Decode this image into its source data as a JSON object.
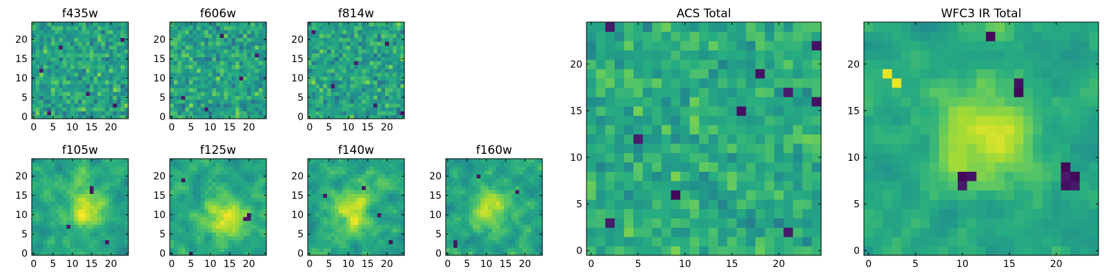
{
  "figure": {
    "colormap": "viridis",
    "colors": {
      "low": "#440154",
      "mid": "#21918c",
      "high": "#fde725",
      "frame": "#000000",
      "background": "#ffffff"
    }
  },
  "chart_data": [
    {
      "type": "heatmap",
      "title": "f435w",
      "grid_size": 25,
      "value_range": [
        0,
        1
      ],
      "mean": 0.58,
      "sigma": 0.17,
      "smooth": 0,
      "xticks": [
        0,
        5,
        10,
        15,
        20
      ],
      "yticks": [
        0,
        5,
        10,
        15,
        20
      ],
      "xlim": [
        -0.5,
        24.5
      ],
      "ylim": [
        -0.5,
        24.5
      ],
      "dark_cells": [
        [
          2,
          12
        ],
        [
          4,
          1
        ],
        [
          7,
          18
        ],
        [
          14,
          6
        ],
        [
          21,
          3
        ],
        [
          23,
          20
        ]
      ]
    },
    {
      "type": "heatmap",
      "title": "f606w",
      "grid_size": 25,
      "value_range": [
        0,
        1
      ],
      "mean": 0.58,
      "sigma": 0.17,
      "smooth": 0,
      "xticks": [
        0,
        5,
        10,
        15,
        20
      ],
      "yticks": [
        0,
        5,
        10,
        15,
        20
      ],
      "xlim": [
        -0.5,
        24.5
      ],
      "ylim": [
        -0.5,
        24.5
      ],
      "dark_cells": [
        [
          3,
          5
        ],
        [
          9,
          2
        ],
        [
          13,
          21
        ],
        [
          18,
          10
        ],
        [
          22,
          16
        ]
      ]
    },
    {
      "type": "heatmap",
      "title": "f814w",
      "grid_size": 25,
      "value_range": [
        0,
        1
      ],
      "mean": 0.58,
      "sigma": 0.17,
      "smooth": 0,
      "xticks": [
        0,
        5,
        10,
        15,
        20
      ],
      "yticks": [
        0,
        5,
        10,
        15,
        20
      ],
      "xlim": [
        -0.5,
        24.5
      ],
      "ylim": [
        -0.5,
        24.5
      ],
      "dark_cells": [
        [
          1,
          22
        ],
        [
          6,
          8
        ],
        [
          12,
          14
        ],
        [
          17,
          3
        ],
        [
          20,
          19
        ],
        [
          24,
          1
        ]
      ]
    },
    {
      "type": "heatmap",
      "title": "f105w",
      "grid_size": 25,
      "value_range": [
        0,
        1
      ],
      "mean": 0.6,
      "sigma": 0.15,
      "smooth": 1,
      "xticks": [
        0,
        5,
        10,
        15,
        20
      ],
      "yticks": [
        0,
        5,
        10,
        15,
        20
      ],
      "xlim": [
        -0.5,
        24.5
      ],
      "ylim": [
        -0.5,
        24.5
      ],
      "bright_center": [
        13,
        12
      ],
      "bright_radius": 3.5,
      "dark_cells": [
        [
          15,
          16
        ],
        [
          15,
          17
        ],
        [
          9,
          7
        ],
        [
          19,
          3
        ]
      ]
    },
    {
      "type": "heatmap",
      "title": "f125w",
      "grid_size": 25,
      "value_range": [
        0,
        1
      ],
      "mean": 0.6,
      "sigma": 0.15,
      "smooth": 1,
      "xticks": [
        0,
        5,
        10,
        15,
        20
      ],
      "yticks": [
        0,
        5,
        10,
        15,
        20
      ],
      "xlim": [
        -0.5,
        24.5
      ],
      "ylim": [
        -0.5,
        24.5
      ],
      "bright_center": [
        14,
        9
      ],
      "bright_radius": 4,
      "dark_cells": [
        [
          19,
          9
        ],
        [
          20,
          9
        ],
        [
          20,
          10
        ],
        [
          5,
          0
        ],
        [
          3,
          19
        ]
      ]
    },
    {
      "type": "heatmap",
      "title": "f140w",
      "grid_size": 25,
      "value_range": [
        0,
        1
      ],
      "mean": 0.6,
      "sigma": 0.16,
      "smooth": 1,
      "xticks": [
        0,
        5,
        10,
        15,
        20
      ],
      "yticks": [
        0,
        5,
        10,
        15,
        20
      ],
      "xlim": [
        -0.5,
        24.5
      ],
      "ylim": [
        -0.5,
        24.5
      ],
      "bright_center": [
        11,
        11
      ],
      "bright_radius": 3.5,
      "dark_cells": [
        [
          14,
          17
        ],
        [
          18,
          10
        ],
        [
          4,
          15
        ],
        [
          21,
          3
        ]
      ]
    },
    {
      "type": "heatmap",
      "title": "f160w",
      "grid_size": 25,
      "value_range": [
        0,
        1
      ],
      "mean": 0.6,
      "sigma": 0.16,
      "smooth": 1,
      "xticks": [
        0,
        5,
        10,
        15,
        20
      ],
      "yticks": [
        0,
        5,
        10,
        15,
        20
      ],
      "xlim": [
        -0.5,
        24.5
      ],
      "ylim": [
        -0.5,
        24.5
      ],
      "bright_center": [
        11,
        12
      ],
      "bright_radius": 3,
      "dark_cells": [
        [
          2,
          2
        ],
        [
          2,
          3
        ],
        [
          18,
          16
        ],
        [
          8,
          20
        ]
      ]
    },
    {
      "type": "heatmap",
      "title": "ACS Total",
      "grid_size": 25,
      "value_range": [
        0,
        1
      ],
      "mean": 0.62,
      "sigma": 0.13,
      "smooth": 0,
      "xticks": [
        0,
        5,
        10,
        15,
        20
      ],
      "yticks": [
        0,
        5,
        10,
        15,
        20
      ],
      "xlim": [
        -0.5,
        24.5
      ],
      "ylim": [
        -0.5,
        24.5
      ],
      "dark_cells": [
        [
          2,
          24
        ],
        [
          2,
          3
        ],
        [
          9,
          6
        ],
        [
          16,
          15
        ],
        [
          24,
          16
        ],
        [
          21,
          17
        ],
        [
          18,
          19
        ],
        [
          24,
          22
        ],
        [
          5,
          12
        ],
        [
          21,
          2
        ]
      ]
    },
    {
      "type": "heatmap",
      "title": "WFC3 IR Total",
      "grid_size": 25,
      "value_range": [
        0,
        1
      ],
      "mean": 0.6,
      "sigma": 0.11,
      "smooth": 1,
      "xticks": [
        0,
        5,
        10,
        15,
        20
      ],
      "yticks": [
        0,
        5,
        10,
        15,
        20
      ],
      "xlim": [
        -0.5,
        24.5
      ],
      "ylim": [
        -0.5,
        24.5
      ],
      "bright_center": [
        12,
        12
      ],
      "bright_radius": 3.5,
      "bright_spots": [
        [
          2,
          19
        ],
        [
          3,
          18
        ]
      ],
      "dark_cells": [
        [
          10,
          8
        ],
        [
          10,
          7
        ],
        [
          11,
          8
        ],
        [
          16,
          17
        ],
        [
          16,
          18
        ],
        [
          13,
          23
        ],
        [
          21,
          9
        ],
        [
          21,
          8
        ],
        [
          21,
          7
        ],
        [
          22,
          8
        ],
        [
          22,
          7
        ]
      ]
    }
  ]
}
